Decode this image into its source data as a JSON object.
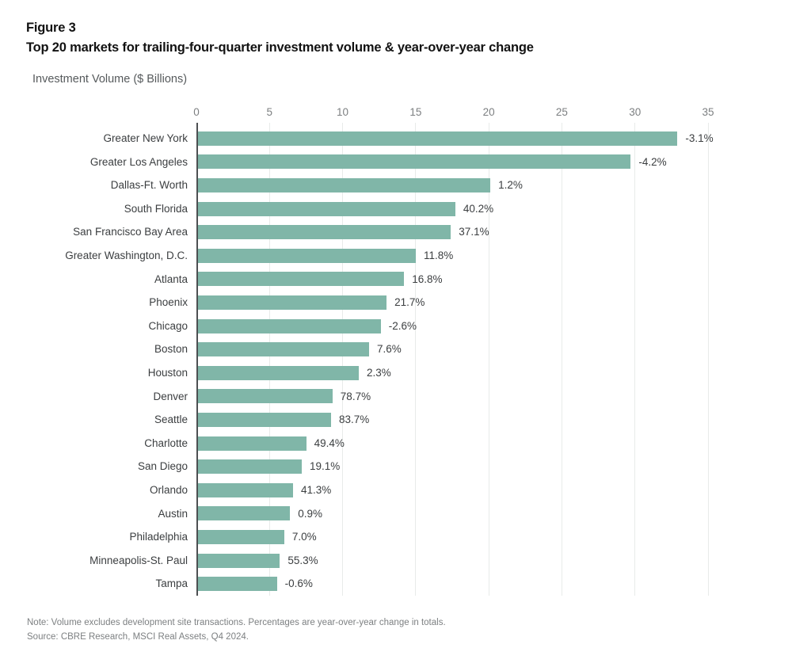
{
  "header": {
    "figure_label": "Figure 3",
    "title": "Top 20 markets for trailing-four-quarter investment volume & year-over-year change"
  },
  "chart_data": {
    "type": "bar",
    "orientation": "horizontal",
    "axis_title": "Investment Volume ($ Billions)",
    "xlim": [
      0,
      35
    ],
    "x_ticks": [
      0,
      5,
      10,
      15,
      20,
      25,
      30,
      35
    ],
    "grid": "vertical-light-gray",
    "legend": "none",
    "bar_color": "#80B6A8",
    "categories": [
      "Greater New York",
      "Greater Los Angeles",
      "Dallas-Ft. Worth",
      "South Florida",
      "San Francisco Bay Area",
      "Greater Washington, D.C.",
      "Atlanta",
      "Phoenix",
      "Chicago",
      "Boston",
      "Houston",
      "Denver",
      "Seattle",
      "Charlotte",
      "San Diego",
      "Orlando",
      "Austin",
      "Philadelphia",
      "Minneapolis-St. Paul",
      "Tampa"
    ],
    "values": [
      32.8,
      29.6,
      20.0,
      17.6,
      17.3,
      14.9,
      14.1,
      12.9,
      12.5,
      11.7,
      11.0,
      9.2,
      9.1,
      7.4,
      7.1,
      6.5,
      6.3,
      5.9,
      5.6,
      5.4
    ],
    "yoy_change_labels": [
      "-3.1%",
      "-4.2%",
      "1.2%",
      "40.2%",
      "37.1%",
      "11.8%",
      "16.8%",
      "21.7%",
      "-2.6%",
      "7.6%",
      "2.3%",
      "78.7%",
      "83.7%",
      "49.4%",
      "19.1%",
      "41.3%",
      "0.9%",
      "7.0%",
      "55.3%",
      "-0.6%"
    ]
  },
  "footer": {
    "note": "Note: Volume excludes development site transactions. Percentages are year-over-year change in totals.",
    "source": "Source: CBRE Research, MSCI Real Assets, Q4 2024."
  }
}
